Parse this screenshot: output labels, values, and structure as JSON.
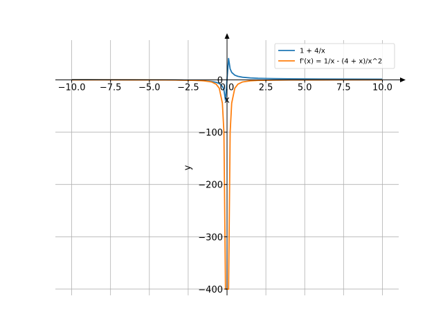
{
  "chart_data": {
    "type": "line",
    "xlabel": "x",
    "ylabel": "y",
    "xlim": [
      -11.05,
      11.05
    ],
    "ylim": [
      -412,
      76
    ],
    "grid": true,
    "legend_position": "top-right",
    "x_ticks": [
      {
        "value": -10.0,
        "label": "−10.0"
      },
      {
        "value": -7.5,
        "label": "−7.5"
      },
      {
        "value": -5.0,
        "label": "−5.0"
      },
      {
        "value": -2.5,
        "label": "−2.5"
      },
      {
        "value": 0.0,
        "label": "0.0"
      },
      {
        "value": 2.5,
        "label": "2.5"
      },
      {
        "value": 5.0,
        "label": "5.0"
      },
      {
        "value": 7.5,
        "label": "7.5"
      },
      {
        "value": 10.0,
        "label": "10.0"
      }
    ],
    "y_ticks": [
      {
        "value": 0,
        "label": "0"
      },
      {
        "value": -100,
        "label": "−100"
      },
      {
        "value": -200,
        "label": "−200"
      },
      {
        "value": -300,
        "label": "−300"
      },
      {
        "value": -400,
        "label": "−400"
      }
    ],
    "series": [
      {
        "name": "1 + 4/x",
        "color": "#1f77b4",
        "x": [
          -10,
          -8,
          -6,
          -4,
          -3,
          -2,
          -1.5,
          -1,
          -0.7,
          -0.5,
          -0.3,
          -0.2,
          -0.1,
          0.1,
          0.2,
          0.3,
          0.5,
          0.7,
          1,
          1.5,
          2,
          3,
          4,
          6,
          8,
          10
        ],
        "y": [
          0.6,
          0.5,
          0.33,
          0,
          -0.33,
          -1,
          -1.67,
          -3,
          -4.7,
          -7,
          -12.3,
          -19,
          -39,
          41,
          21,
          14.3,
          9,
          6.7,
          5,
          3.67,
          3,
          2.33,
          2,
          1.67,
          1.5,
          1.4
        ]
      },
      {
        "name": "f'(x) = 1/x - (4 + x)/x^2",
        "color": "#ff7f0e",
        "x": [
          -10,
          -8,
          -6,
          -4,
          -3,
          -2,
          -1.5,
          -1,
          -0.7,
          -0.5,
          -0.3,
          -0.2,
          -0.1,
          0.1,
          0.2,
          0.3,
          0.5,
          0.7,
          1,
          1.5,
          2,
          3,
          4,
          6,
          8,
          10
        ],
        "y": [
          -0.04,
          -0.06,
          -0.11,
          -0.25,
          -0.44,
          -1,
          -1.78,
          -4,
          -8.2,
          -16,
          -44.4,
          -100,
          -400,
          -400,
          -100,
          -44.4,
          -16,
          -8.2,
          -4,
          -1.78,
          -1,
          -0.44,
          -0.25,
          -0.11,
          -0.06,
          -0.04
        ]
      }
    ]
  }
}
